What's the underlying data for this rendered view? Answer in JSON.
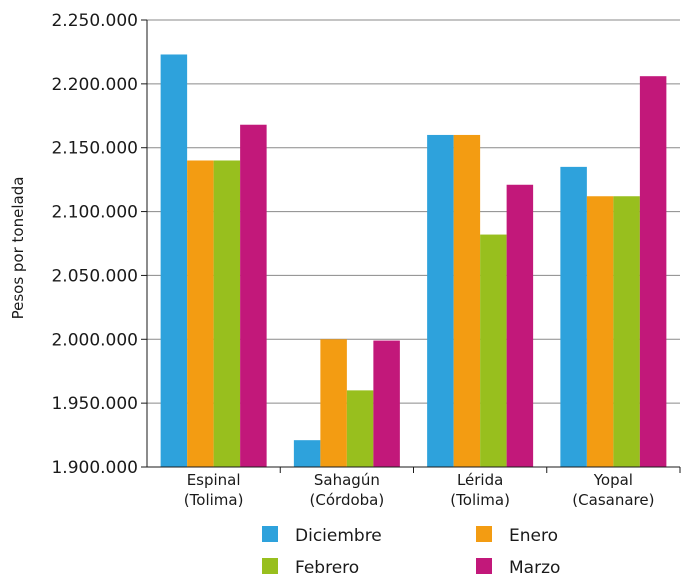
{
  "chart_data": {
    "type": "bar",
    "title": "",
    "xlabel": "",
    "ylabel": "Pesos por tonelada",
    "ylim": [
      1900000,
      2250000
    ],
    "yticks": [
      1900000,
      1950000,
      2000000,
      2050000,
      2100000,
      2150000,
      2200000,
      2250000
    ],
    "ytick_labels": [
      "1.900.000",
      "1.950.000",
      "2.000.000",
      "2.050.000",
      "2.100.000",
      "2.150.000",
      "2.200.000",
      "2.250.000"
    ],
    "categories": [
      [
        "Espinal",
        "(Tolima)"
      ],
      [
        "Sahagún",
        "(Córdoba)"
      ],
      [
        "Lérida",
        "(Tolima)"
      ],
      [
        "Yopal",
        "(Casanare)"
      ]
    ],
    "series": [
      {
        "name": "Diciembre",
        "color": "#2ea2dc",
        "values": [
          2223000,
          1921000,
          2160000,
          2135000
        ]
      },
      {
        "name": "Enero",
        "color": "#f39c12",
        "values": [
          2140000,
          2000000,
          2160000,
          2112000
        ]
      },
      {
        "name": "Febrero",
        "color": "#98bf1e",
        "values": [
          2140000,
          1960000,
          2082000,
          2112000
        ]
      },
      {
        "name": "Marzo",
        "color": "#c2187a",
        "values": [
          2168000,
          1999000,
          2121000,
          2206000
        ]
      }
    ],
    "grid": true,
    "legend_position": "bottom"
  }
}
